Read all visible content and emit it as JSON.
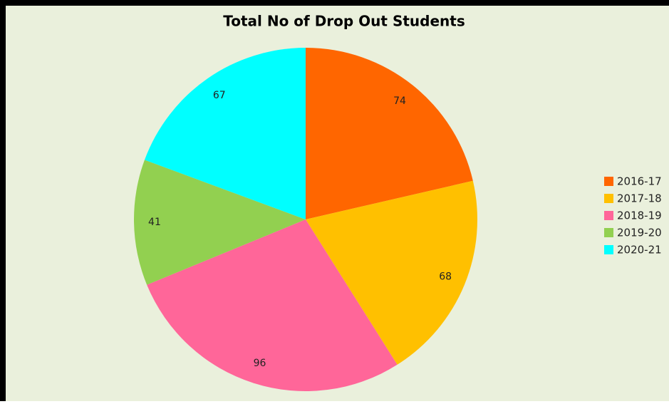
{
  "chart_data": {
    "type": "pie",
    "title": "Total No of Drop Out Students",
    "categories": [
      "2016-17",
      "2017-18",
      "2018-19",
      "2019-20",
      "2020-21"
    ],
    "values": [
      74,
      68,
      96,
      41,
      67
    ],
    "colors": [
      "#ff6600",
      "#ffc000",
      "#ff6699",
      "#92d050",
      "#00ffff"
    ],
    "legend": "right"
  }
}
